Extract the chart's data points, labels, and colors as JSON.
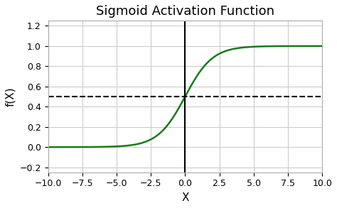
{
  "title": "Sigmoid Activation Function",
  "xlabel": "X",
  "ylabel": "f(X)",
  "xlim": [
    -10,
    10
  ],
  "ylim": [
    -0.25,
    1.25
  ],
  "xticks": [
    -10.0,
    -7.5,
    -5.0,
    -2.5,
    0.0,
    2.5,
    5.0,
    7.5,
    10.0
  ],
  "yticks": [
    -0.2,
    0.0,
    0.2,
    0.4,
    0.6,
    0.8,
    1.0,
    1.2
  ],
  "sigmoid_color": "#1a7a1a",
  "sigmoid_linewidth": 1.8,
  "dashed_line_y": 0.5,
  "dashed_color": "black",
  "dashed_linewidth": 1.5,
  "vline_x": 0,
  "vline_color": "black",
  "vline_linewidth": 1.5,
  "grid_color": "#cccccc",
  "grid_linewidth": 0.8,
  "background_color": "#ffffff",
  "title_fontsize": 13,
  "label_fontsize": 11,
  "tick_fontsize": 9
}
